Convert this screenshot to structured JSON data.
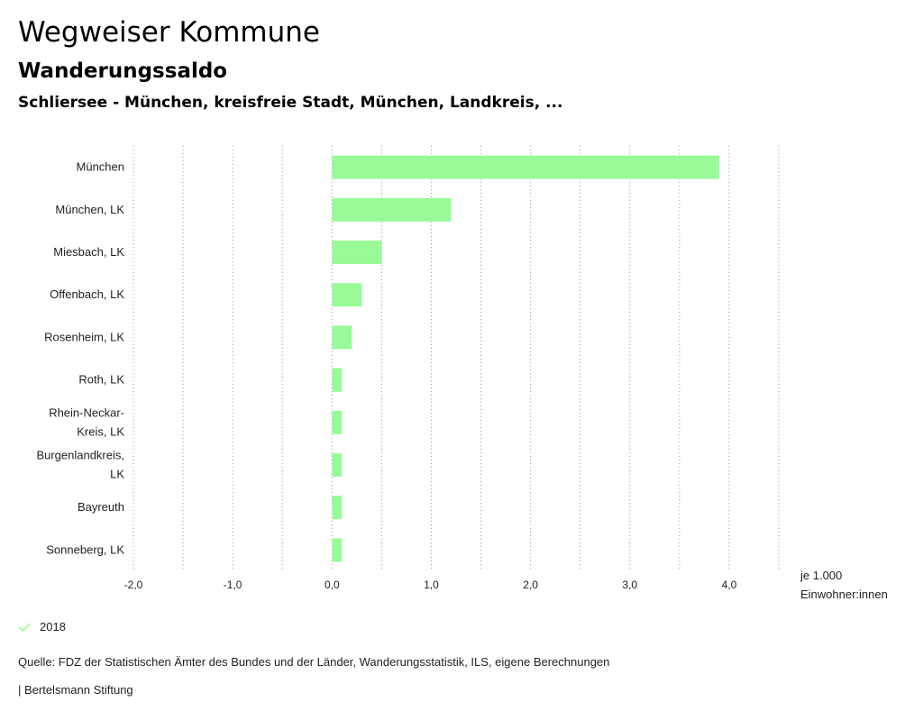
{
  "header": {
    "title": "Wegweiser Kommune",
    "subtitle": "Wanderungssaldo",
    "region": "Schliersee - München, kreisfreie Stadt, München, Landkreis, ..."
  },
  "chart_data": {
    "type": "bar",
    "orientation": "horizontal",
    "categories": [
      [
        "München"
      ],
      [
        "München, LK"
      ],
      [
        "Miesbach, LK"
      ],
      [
        "Offenbach, LK"
      ],
      [
        "Rosenheim, LK"
      ],
      [
        "Roth, LK"
      ],
      [
        "Rhein-Neckar-",
        "Kreis, LK"
      ],
      [
        "Burgenlandkreis,",
        "LK"
      ],
      [
        "Bayreuth"
      ],
      [
        "Sonneberg, LK"
      ]
    ],
    "series": [
      {
        "name": "2018",
        "color": "#98FB98",
        "values": [
          3.9,
          1.2,
          0.5,
          0.3,
          0.2,
          0.1,
          0.1,
          0.1,
          0.1,
          0.1
        ]
      }
    ],
    "xlim": [
      -2.0,
      4.5
    ],
    "ticks": [
      -2.0,
      -1.0,
      0.0,
      1.0,
      2.0,
      3.0,
      4.0
    ],
    "tick_labels": [
      "-2,0",
      "-1,0",
      "0,0",
      "1,0",
      "2,0",
      "3,0",
      "4,0"
    ],
    "minor_ticks": [
      -1.5,
      -0.5,
      0.5,
      1.5,
      2.5,
      3.5,
      4.5
    ],
    "unit_label": [
      "je 1.000",
      "Einwohner:innen"
    ],
    "grid": "vertical-dotted",
    "legend_position": "bottom-left"
  },
  "legend": {
    "label": "2018",
    "color": "#98FB98"
  },
  "footer": {
    "source": "Quelle: FDZ der Statistischen Ämter des Bundes und der Länder, Wanderungsstatistik, ILS, eigene Berechnungen",
    "brand": "| Bertelsmann Stiftung"
  }
}
